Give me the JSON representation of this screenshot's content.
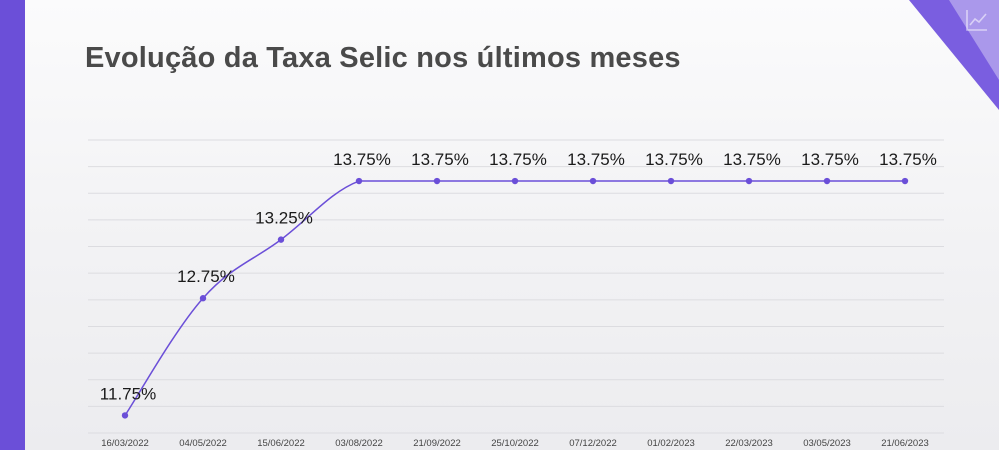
{
  "page": {
    "title": "Evolução da Taxa Selic nos últimos meses"
  },
  "decor": {
    "accent_color": "#6b4fd8",
    "corner_icon": "line-chart-icon"
  },
  "chart_data": {
    "type": "line",
    "title": "Evolução da Taxa Selic nos últimos meses",
    "xlabel": "",
    "ylabel": "",
    "categories": [
      "16/03/2022",
      "04/05/2022",
      "15/06/2022",
      "03/08/2022",
      "21/09/2022",
      "25/10/2022",
      "07/12/2022",
      "01/02/2023",
      "22/03/2023",
      "03/05/2023",
      "21/06/2023"
    ],
    "values": [
      11.75,
      12.75,
      13.25,
      13.75,
      13.75,
      13.75,
      13.75,
      13.75,
      13.75,
      13.75,
      13.75
    ],
    "data_labels": [
      "11.75%",
      "12.75%",
      "13.25%",
      "13.75%",
      "13.75%",
      "13.75%",
      "13.75%",
      "13.75%",
      "13.75%",
      "13.75%",
      "13.75%"
    ],
    "ylim": [
      11.6,
      14.1
    ],
    "grid": true,
    "line_color": "#6b4fd8",
    "legend": "none"
  }
}
